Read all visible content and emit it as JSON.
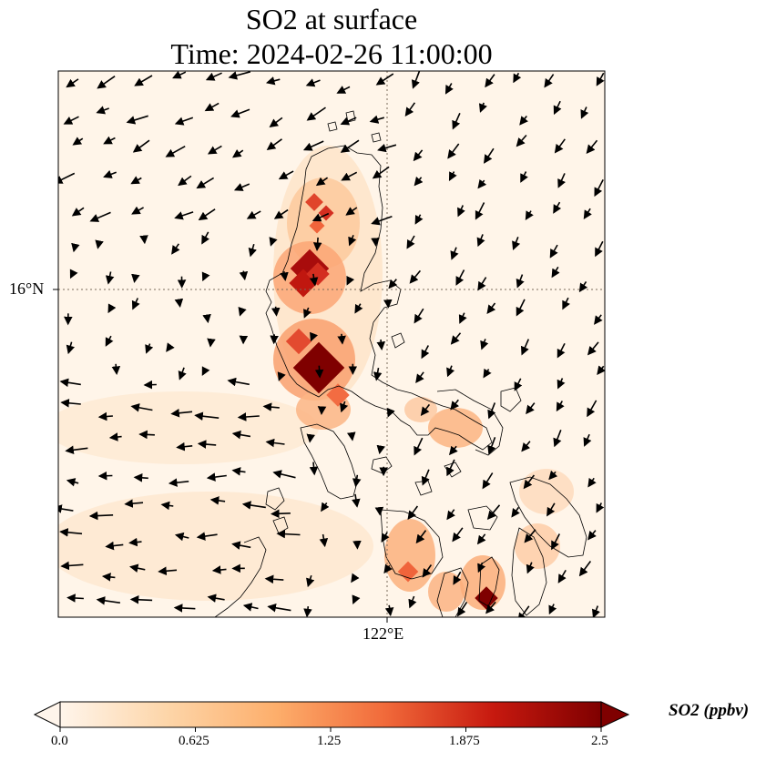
{
  "title": {
    "line1": "SO2 at surface",
    "line2": "Time: 2024-02-26 11:00:00"
  },
  "map": {
    "lat_label": "16°N",
    "lon_label": "122°E",
    "colors": {
      "background": "#fff5e9",
      "gridline": "#7a6a5a",
      "coastline": "#000000"
    }
  },
  "colorbar": {
    "title": "SO2 (ppbv)",
    "ticks": [
      "0.0",
      "0.625",
      "1.25",
      "1.875",
      "2.5"
    ],
    "range": [
      0.0,
      2.5
    ],
    "extend": "both",
    "colors": [
      "#fff5eb",
      "#fdd5a8",
      "#fdae6b",
      "#f16a3a",
      "#c7190f",
      "#7f0000"
    ]
  }
}
